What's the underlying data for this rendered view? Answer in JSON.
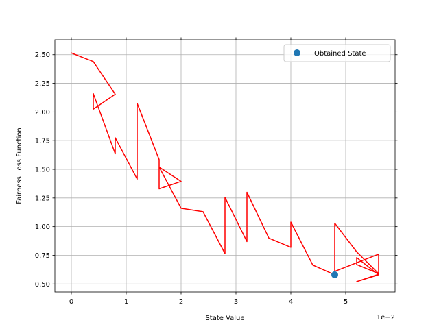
{
  "chart_data": {
    "type": "line",
    "xlabel": "State Value",
    "ylabel": "Fairness Loss Function",
    "x_offset_label": "1e−2",
    "xlim": [
      -0.003,
      0.059
    ],
    "ylim": [
      0.43,
      2.63
    ],
    "x_ticks": [
      0,
      0.01,
      0.02,
      0.03,
      0.04,
      0.05
    ],
    "x_tick_labels": [
      "0",
      "1",
      "2",
      "3",
      "4",
      "5"
    ],
    "y_ticks": [
      0.5,
      0.75,
      1.0,
      1.25,
      1.5,
      1.75,
      2.0,
      2.25,
      2.5
    ],
    "y_tick_labels": [
      "0.50",
      "0.75",
      "1.00",
      "1.25",
      "1.50",
      "1.75",
      "2.00",
      "2.25",
      "2.50"
    ],
    "grid": true,
    "legend": {
      "placement": "top-right"
    },
    "series": [
      {
        "color": "#ff0000",
        "points": [
          [
            0.0,
            2.515
          ],
          [
            0.004,
            2.44
          ],
          [
            0.008,
            2.155
          ],
          [
            0.004,
            2.025
          ],
          [
            0.004,
            2.16
          ],
          [
            0.008,
            1.635
          ],
          [
            0.008,
            1.775
          ],
          [
            0.012,
            1.415
          ],
          [
            0.012,
            2.075
          ],
          [
            0.016,
            1.585
          ],
          [
            0.016,
            1.33
          ],
          [
            0.02,
            1.395
          ],
          [
            0.016,
            1.52
          ],
          [
            0.02,
            1.16
          ],
          [
            0.024,
            1.13
          ],
          [
            0.028,
            0.765
          ],
          [
            0.028,
            1.255
          ],
          [
            0.032,
            0.87
          ],
          [
            0.032,
            1.3
          ],
          [
            0.036,
            0.9
          ],
          [
            0.04,
            0.82
          ],
          [
            0.04,
            1.04
          ],
          [
            0.044,
            0.665
          ],
          [
            0.048,
            0.58
          ],
          [
            0.048,
            1.03
          ],
          [
            0.052,
            0.78
          ],
          [
            0.056,
            0.59
          ],
          [
            0.052,
            0.67
          ],
          [
            0.052,
            0.73
          ],
          [
            0.056,
            0.58
          ],
          [
            0.052,
            0.52
          ],
          [
            0.056,
            0.585
          ],
          [
            0.056,
            0.76
          ],
          [
            0.048,
            0.61
          ]
        ]
      }
    ],
    "highlight_point": {
      "name": "Obtained State",
      "x": 0.048,
      "y": 0.58,
      "color": "#1f77b4"
    }
  }
}
